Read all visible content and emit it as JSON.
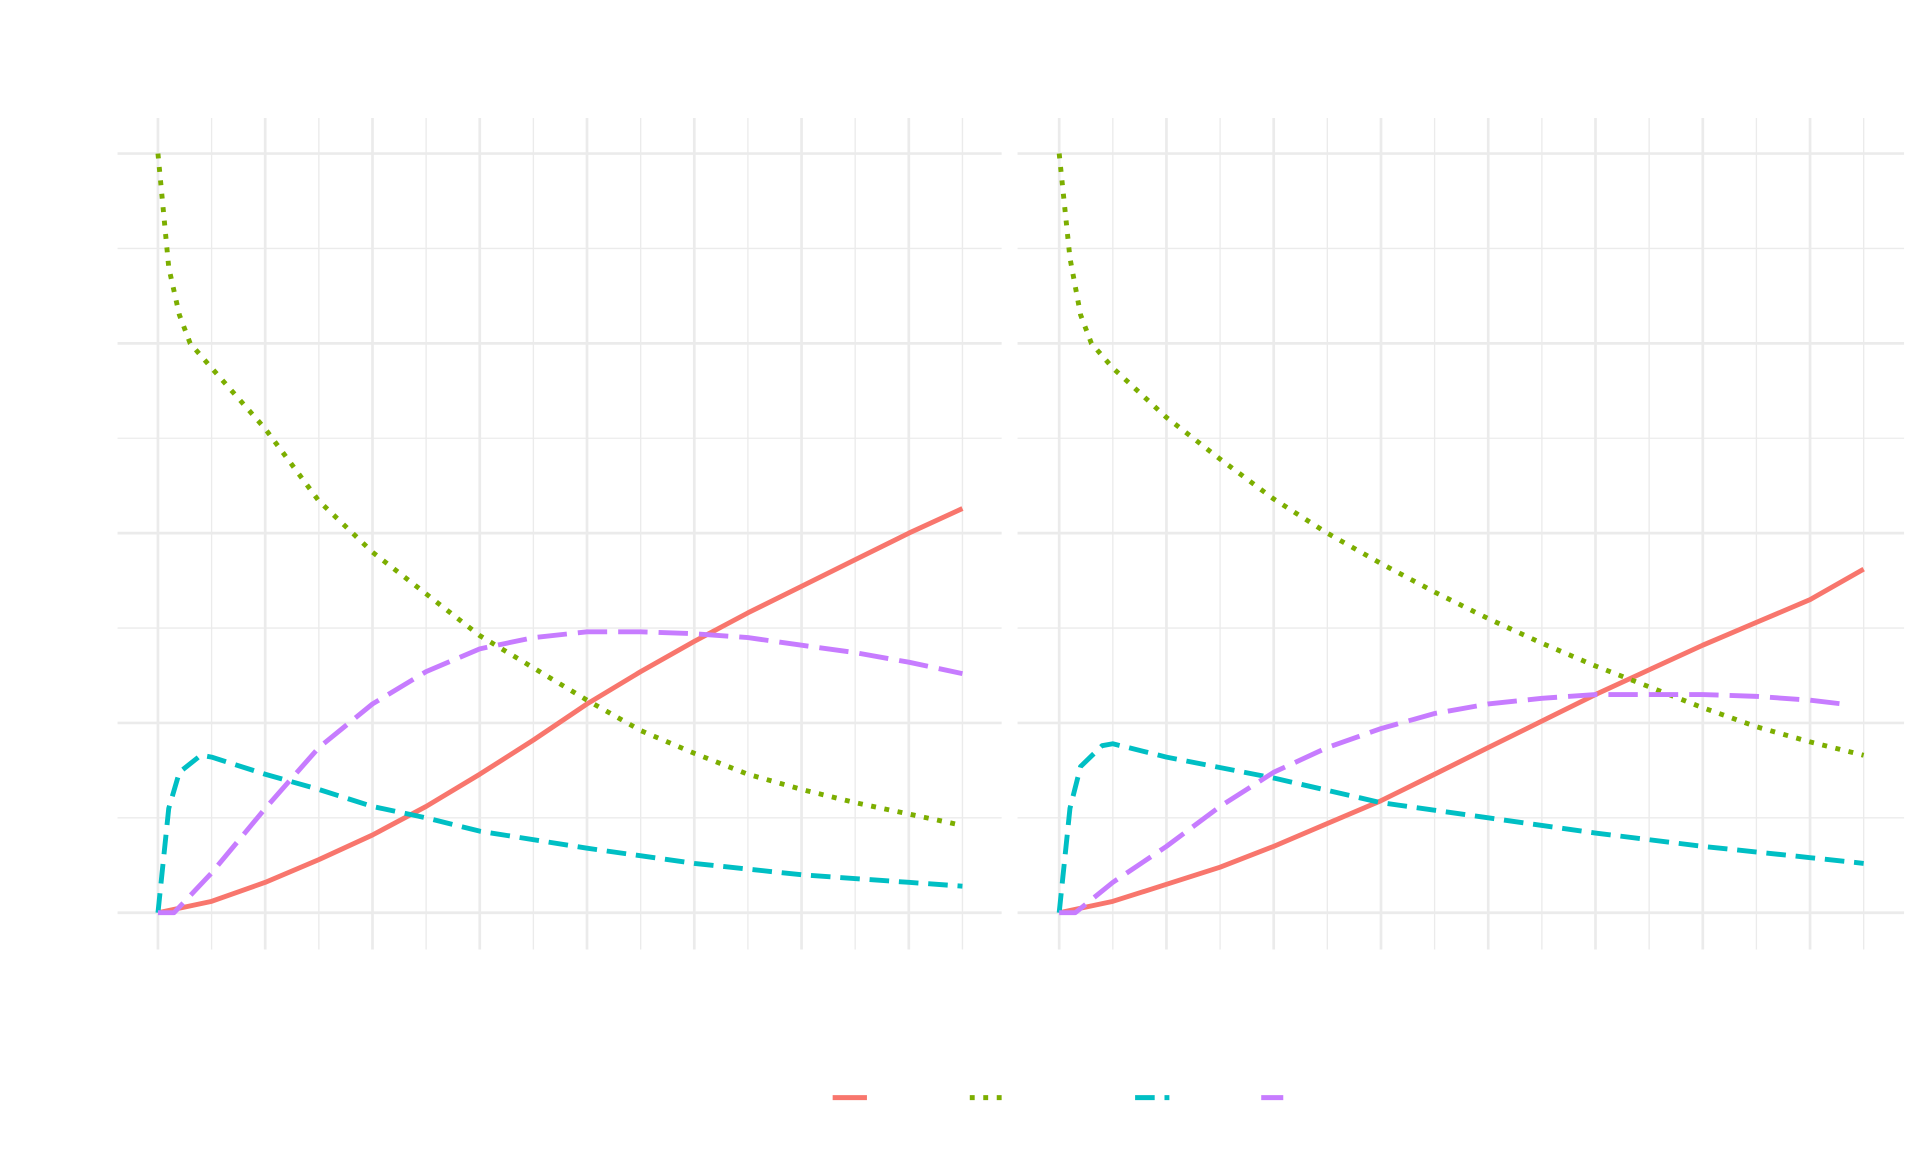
{
  "chart_data": [
    {
      "type": "line",
      "panel": "left",
      "title": "",
      "xlabel": "",
      "ylabel": "",
      "xlim": [
        0,
        7.5
      ],
      "ylim": [
        0,
        4
      ],
      "grid": true,
      "legend": "bottom",
      "series": [
        {
          "color": "#F8766D",
          "linetype": "solid",
          "x": [
            0,
            0.5,
            1,
            1.5,
            2,
            2.5,
            3,
            3.5,
            4,
            4.5,
            5,
            5.5,
            6,
            6.5,
            7,
            7.5
          ],
          "y": [
            0,
            0.06,
            0.16,
            0.28,
            0.41,
            0.56,
            0.73,
            0.91,
            1.1,
            1.27,
            1.43,
            1.58,
            1.72,
            1.86,
            2.0,
            2.13
          ]
        },
        {
          "color": "#7CAE00",
          "linetype": "dotted",
          "x": [
            0,
            0.05,
            0.1,
            0.2,
            0.3,
            0.5,
            1,
            1.5,
            2,
            2.5,
            3,
            3.5,
            4,
            4.5,
            5,
            5.5,
            6,
            6.5,
            7,
            7.5
          ],
          "y": [
            4.0,
            3.7,
            3.4,
            3.15,
            3.0,
            2.87,
            2.55,
            2.17,
            1.9,
            1.68,
            1.46,
            1.29,
            1.12,
            0.96,
            0.84,
            0.73,
            0.65,
            0.58,
            0.52,
            0.46
          ]
        },
        {
          "color": "#00BFC4",
          "linetype": "dashed",
          "x": [
            0,
            0.1,
            0.2,
            0.4,
            0.5,
            1,
            1.5,
            2,
            2.5,
            3,
            4,
            5,
            6,
            7,
            7.5
          ],
          "y": [
            0,
            0.55,
            0.74,
            0.83,
            0.82,
            0.73,
            0.65,
            0.56,
            0.5,
            0.43,
            0.34,
            0.26,
            0.2,
            0.16,
            0.14
          ]
        },
        {
          "color": "#C77CFF",
          "linetype": "longdash",
          "x": [
            0,
            0.15,
            0.5,
            1,
            1.5,
            2,
            2.5,
            3,
            3.5,
            4,
            4.5,
            5,
            5.5,
            6,
            6.5,
            7,
            7.5
          ],
          "y": [
            0,
            0.0,
            0.21,
            0.55,
            0.87,
            1.1,
            1.27,
            1.39,
            1.45,
            1.48,
            1.48,
            1.47,
            1.45,
            1.41,
            1.37,
            1.32,
            1.26
          ]
        }
      ]
    },
    {
      "type": "line",
      "panel": "right",
      "title": "",
      "xlabel": "",
      "ylabel": "",
      "xlim": [
        0,
        7.5
      ],
      "ylim": [
        0,
        4
      ],
      "grid": true,
      "legend": "bottom",
      "series": [
        {
          "color": "#F8766D",
          "linetype": "solid",
          "x": [
            0,
            0.5,
            1,
            1.5,
            2,
            2.5,
            3,
            3.5,
            4,
            4.5,
            5,
            5.5,
            6,
            6.5,
            7,
            7.5
          ],
          "y": [
            0,
            0.06,
            0.15,
            0.24,
            0.35,
            0.47,
            0.59,
            0.73,
            0.87,
            1.01,
            1.15,
            1.28,
            1.41,
            1.53,
            1.65,
            1.81
          ]
        },
        {
          "color": "#7CAE00",
          "linetype": "dotted",
          "x": [
            0,
            0.1,
            0.2,
            0.3,
            0.5,
            1,
            1.5,
            2,
            2.5,
            3,
            3.5,
            4,
            4.5,
            5,
            5.5,
            6,
            6.5,
            7,
            7.5
          ],
          "y": [
            4.0,
            3.45,
            3.15,
            3.0,
            2.87,
            2.61,
            2.39,
            2.18,
            2.0,
            1.84,
            1.69,
            1.55,
            1.42,
            1.3,
            1.19,
            1.08,
            0.98,
            0.9,
            0.83
          ]
        },
        {
          "color": "#00BFC4",
          "linetype": "dashed",
          "x": [
            0,
            0.1,
            0.2,
            0.4,
            0.5,
            1,
            2,
            3,
            4,
            5,
            6,
            7,
            7.5
          ],
          "y": [
            0,
            0.55,
            0.77,
            0.88,
            0.89,
            0.82,
            0.71,
            0.58,
            0.5,
            0.42,
            0.35,
            0.29,
            0.26
          ]
        },
        {
          "color": "#C77CFF",
          "linetype": "longdash",
          "x": [
            0,
            0.15,
            0.5,
            1,
            1.5,
            2,
            2.5,
            3,
            3.5,
            4,
            4.5,
            5,
            5.5,
            6,
            6.5,
            7,
            7.3
          ],
          "y": [
            0,
            0.0,
            0.16,
            0.35,
            0.56,
            0.74,
            0.87,
            0.97,
            1.05,
            1.1,
            1.13,
            1.15,
            1.15,
            1.15,
            1.14,
            1.12,
            1.1
          ]
        }
      ]
    }
  ],
  "legend": {
    "keys": [
      {
        "color": "#F8766D",
        "linetype": "solid"
      },
      {
        "color": "#7CAE00",
        "linetype": "dotted"
      },
      {
        "color": "#00BFC4",
        "linetype": "dashed"
      },
      {
        "color": "#C77CFF",
        "linetype": "longdash"
      }
    ]
  }
}
